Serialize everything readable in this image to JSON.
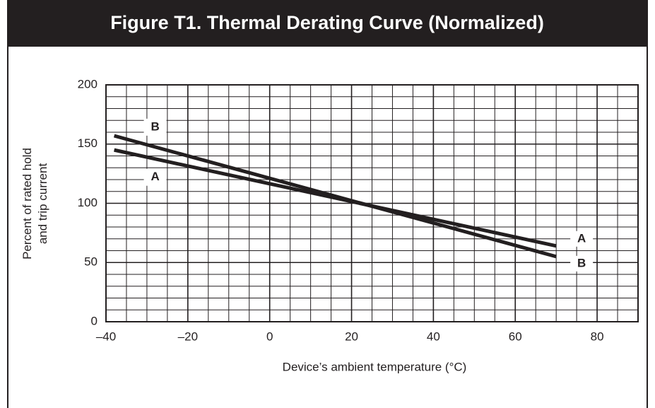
{
  "chart_data": {
    "type": "line",
    "title": "Figure T1. Thermal Derating Curve (Normalized)",
    "xlabel": "Device’s ambient temperature (°C)",
    "ylabel": [
      "Percent of rated hold",
      "and trip current"
    ],
    "x": [
      -38,
      70
    ],
    "series": [
      {
        "name": "A",
        "color": "#231f20",
        "values": [
          145,
          64
        ]
      },
      {
        "name": "B",
        "color": "#231f20",
        "values": [
          157,
          55
        ]
      }
    ],
    "xlim": [
      -40,
      90
    ],
    "xticks": [
      {
        "value": -40,
        "label": "–40"
      },
      {
        "value": -20,
        "label": "–20"
      },
      0,
      20,
      40,
      60,
      80
    ],
    "ylim": [
      0,
      200
    ],
    "yticks": [
      0,
      50,
      100,
      150,
      200
    ],
    "grid": true,
    "minor_grid": {
      "x": 5,
      "y": 10
    }
  }
}
